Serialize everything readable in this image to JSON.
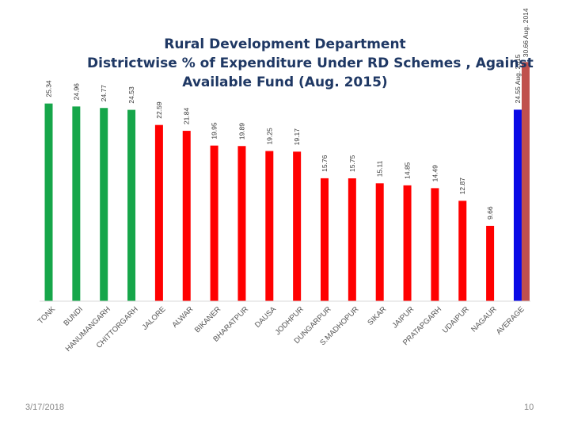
{
  "chart_data": {
    "type": "bar",
    "title_lines": [
      "Rural Development Department",
      "Districtwise % of Expenditure Under RD Schemes , Against",
      "Available Fund (Aug. 2015)"
    ],
    "categories": [
      "TONK",
      "BUNDI",
      "HANUMANGARH",
      "CHITTORGARH",
      "JALORE",
      "ALWAR",
      "BIKANER",
      "BHARATPUR",
      "DAUSA",
      "JODHPUR",
      "DUNGARPUR",
      "S.MADHOPUR",
      "SIKAR",
      "JAIPUR",
      "PRATAPGARH",
      "UDAIPUR",
      "NAGAUR",
      "AVERAGE"
    ],
    "values": [
      25.34,
      24.96,
      24.77,
      24.53,
      22.59,
      21.84,
      19.95,
      19.89,
      19.25,
      19.17,
      15.76,
      15.75,
      15.11,
      14.85,
      14.49,
      12.87,
      9.66,
      24.55
    ],
    "value_labels": [
      "25.34",
      "24.96",
      "24.77",
      "24.53",
      "22.59",
      "21.84",
      "19.95",
      "19.89",
      "19.25",
      "19.17",
      "15.76",
      "15.75",
      "15.11",
      "14.85",
      "14.49",
      "12.87",
      "9.66",
      "24.55 Aug. 2015"
    ],
    "bar_colors": [
      "#16a64a",
      "#16a64a",
      "#16a64a",
      "#16a64a",
      "#ff0000",
      "#ff0000",
      "#ff0000",
      "#ff0000",
      "#ff0000",
      "#ff0000",
      "#ff0000",
      "#ff0000",
      "#ff0000",
      "#ff0000",
      "#ff0000",
      "#ff0000",
      "#ff0000",
      "#0a0ae6"
    ],
    "extra_series": {
      "name": "Aug. 2014",
      "category": "AVERAGE",
      "value": 30.66,
      "label": "30.66 Aug. 2014",
      "color": "#c0504d"
    },
    "ylim": [
      0,
      31.5
    ],
    "xlabel": "",
    "ylabel": ""
  },
  "footer": {
    "date": "3/17/2018",
    "page": "10"
  }
}
